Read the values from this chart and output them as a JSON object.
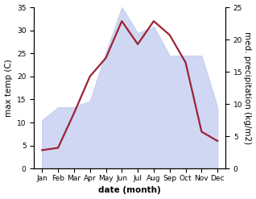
{
  "months": [
    "Jan",
    "Feb",
    "Mar",
    "Apr",
    "May",
    "Jun",
    "Jul",
    "Aug",
    "Sep",
    "Oct",
    "Nov",
    "Dec"
  ],
  "month_x": [
    0,
    1,
    2,
    3,
    4,
    5,
    6,
    7,
    8,
    9,
    10,
    11
  ],
  "temperature": [
    4.0,
    4.5,
    12.0,
    20.0,
    24.0,
    32.0,
    27.0,
    32.0,
    29.0,
    23.0,
    8.0,
    6.0
  ],
  "precipitation": [
    7.5,
    9.5,
    9.5,
    10.5,
    18.0,
    25.0,
    21.0,
    22.0,
    17.5,
    17.5,
    17.5,
    9.5
  ],
  "temp_ylim": [
    0,
    35
  ],
  "precip_ylim": [
    0,
    25
  ],
  "temp_yticks": [
    0,
    5,
    10,
    15,
    20,
    25,
    30,
    35
  ],
  "precip_yticks": [
    0,
    5,
    10,
    15,
    20,
    25
  ],
  "fill_color": "#c8d0f0",
  "fill_alpha": 0.85,
  "line_color": "#9b2335",
  "line_width": 1.6,
  "xlabel": "date (month)",
  "ylabel_left": "max temp (C)",
  "ylabel_right": "med. precipitation (kg/m2)",
  "bg_color": "#ffffff",
  "label_fontsize": 7.5,
  "tick_fontsize": 6.5,
  "xlim": [
    -0.5,
    11.5
  ]
}
